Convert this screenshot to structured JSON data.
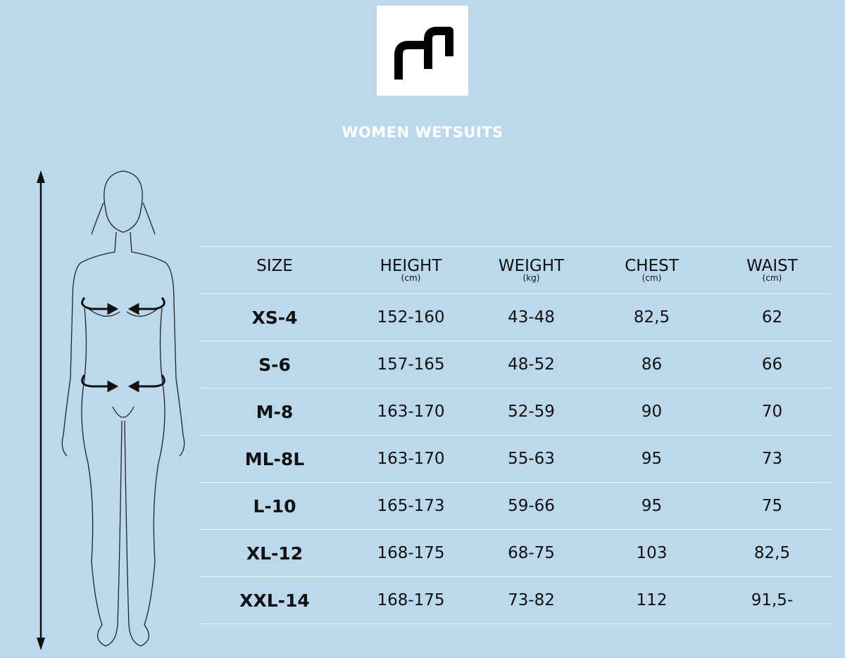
{
  "brand": {
    "logo_icon": "m-logo-icon"
  },
  "title": "WOMEN WETSUITS",
  "colors": {
    "background": "#bcd9ec",
    "title": "#ffffff",
    "text": "#111111",
    "rule": "#eef6fb"
  },
  "table": {
    "headers": [
      {
        "label": "SIZE",
        "unit": ""
      },
      {
        "label": "HEIGHT",
        "unit": "(cm)"
      },
      {
        "label": "WEIGHT",
        "unit": "(kg)"
      },
      {
        "label": "CHEST",
        "unit": "(cm)"
      },
      {
        "label": "WAIST",
        "unit": "(cm)"
      }
    ],
    "rows": [
      [
        "XS-4",
        "152-160",
        "43-48",
        "82,5",
        "62"
      ],
      [
        "S-6",
        "157-165",
        "48-52",
        "86",
        "66"
      ],
      [
        "M-8",
        "163-170",
        "52-59",
        "90",
        "70"
      ],
      [
        "ML-8L",
        "163-170",
        "55-63",
        "95",
        "73"
      ],
      [
        "L-10",
        "165-173",
        "59-66",
        "95",
        "75"
      ],
      [
        "XL-12",
        "168-175",
        "68-75",
        "103",
        "82,5"
      ],
      [
        "XXL-14",
        "168-175",
        "73-82",
        "112",
        "91,5-"
      ]
    ]
  }
}
